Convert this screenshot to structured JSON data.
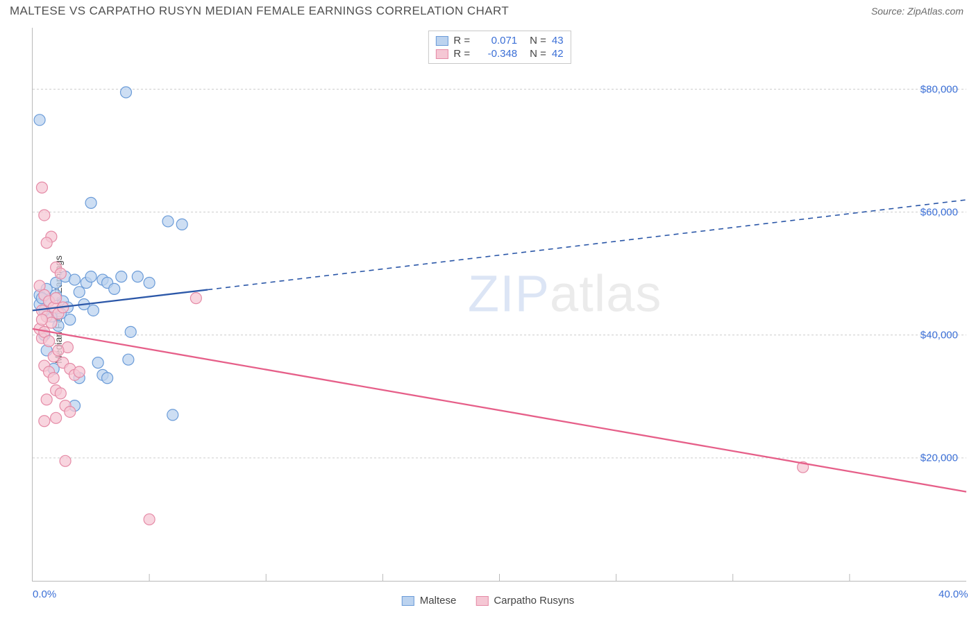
{
  "title": "MALTESE VS CARPATHO RUSYN MEDIAN FEMALE EARNINGS CORRELATION CHART",
  "source": "Source: ZipAtlas.com",
  "y_axis_label": "Median Female Earnings",
  "watermark_zip": "ZIP",
  "watermark_atlas": "atlas",
  "chart": {
    "type": "scatter-with-trendlines",
    "x_min": 0.0,
    "x_max": 40.0,
    "x_ticks": [
      0.0,
      40.0
    ],
    "x_tick_labels": [
      "0.0%",
      "40.0%"
    ],
    "x_minor_ticks": [
      5,
      10,
      15,
      20,
      25,
      30,
      35
    ],
    "y_min": 0,
    "y_max": 90000,
    "y_gridlines": [
      20000,
      40000,
      60000,
      80000
    ],
    "y_tick_labels": [
      "$20,000",
      "$40,000",
      "$60,000",
      "$80,000"
    ],
    "background_color": "#ffffff",
    "grid_color": "#cccccc",
    "axis_color": "#b9b9b9",
    "tick_label_color": "#3b6fd6",
    "marker_radius": 8,
    "marker_stroke_width": 1.2,
    "series": [
      {
        "name": "Maltese",
        "fill": "#bcd3ef",
        "stroke": "#6a9bd8",
        "line_color": "#2b57a8",
        "line_width": 2.3,
        "r": 0.071,
        "n": 43,
        "points": [
          [
            0.3,
            75000
          ],
          [
            4.0,
            79500
          ],
          [
            2.5,
            61500
          ],
          [
            5.8,
            58500
          ],
          [
            6.4,
            58000
          ],
          [
            0.3,
            46500
          ],
          [
            0.6,
            47500
          ],
          [
            1.0,
            48500
          ],
          [
            1.3,
            45500
          ],
          [
            1.4,
            49500
          ],
          [
            1.5,
            44500
          ],
          [
            1.8,
            49000
          ],
          [
            2.0,
            47000
          ],
          [
            2.2,
            45000
          ],
          [
            2.3,
            48500
          ],
          [
            2.5,
            49500
          ],
          [
            2.6,
            44000
          ],
          [
            3.0,
            49000
          ],
          [
            3.2,
            48500
          ],
          [
            3.5,
            47500
          ],
          [
            3.8,
            49500
          ],
          [
            4.2,
            40500
          ],
          [
            4.5,
            49500
          ],
          [
            5.0,
            48500
          ],
          [
            1.2,
            43500
          ],
          [
            0.8,
            43000
          ],
          [
            1.1,
            41500
          ],
          [
            1.6,
            42500
          ],
          [
            0.5,
            40000
          ],
          [
            2.8,
            35500
          ],
          [
            4.1,
            36000
          ],
          [
            2.0,
            33000
          ],
          [
            3.0,
            33500
          ],
          [
            3.2,
            33000
          ],
          [
            0.9,
            34500
          ],
          [
            0.6,
            37500
          ],
          [
            1.8,
            28500
          ],
          [
            6.0,
            27000
          ],
          [
            0.3,
            45000
          ],
          [
            0.4,
            46000
          ],
          [
            1.0,
            46500
          ],
          [
            0.7,
            45500
          ],
          [
            0.5,
            44000
          ]
        ],
        "trend": {
          "x1": 0,
          "y1": 44000,
          "x2": 40,
          "y2": 62000,
          "solid_until_x": 7.5
        }
      },
      {
        "name": "Carpatho Rusyns",
        "fill": "#f5c7d4",
        "stroke": "#e58aa6",
        "line_color": "#e65f89",
        "line_width": 2.3,
        "r": -0.348,
        "n": 42,
        "points": [
          [
            0.4,
            64000
          ],
          [
            0.5,
            59500
          ],
          [
            0.8,
            56000
          ],
          [
            0.6,
            55000
          ],
          [
            1.0,
            51000
          ],
          [
            1.2,
            50000
          ],
          [
            0.3,
            48000
          ],
          [
            0.5,
            46500
          ],
          [
            0.7,
            45500
          ],
          [
            0.9,
            44500
          ],
          [
            1.0,
            46000
          ],
          [
            1.1,
            43500
          ],
          [
            0.4,
            44000
          ],
          [
            0.6,
            43000
          ],
          [
            0.8,
            42000
          ],
          [
            1.3,
            44500
          ],
          [
            1.5,
            38000
          ],
          [
            0.4,
            39500
          ],
          [
            0.9,
            36500
          ],
          [
            1.1,
            37500
          ],
          [
            1.3,
            35500
          ],
          [
            1.6,
            34500
          ],
          [
            1.8,
            33500
          ],
          [
            2.0,
            34000
          ],
          [
            0.5,
            35000
          ],
          [
            0.7,
            34000
          ],
          [
            0.9,
            33000
          ],
          [
            1.0,
            31000
          ],
          [
            1.2,
            30500
          ],
          [
            0.6,
            29500
          ],
          [
            1.4,
            28500
          ],
          [
            1.6,
            27500
          ],
          [
            0.5,
            26000
          ],
          [
            1.0,
            26500
          ],
          [
            1.4,
            19500
          ],
          [
            5.0,
            10000
          ],
          [
            33.0,
            18500
          ],
          [
            7.0,
            46000
          ],
          [
            0.3,
            41000
          ],
          [
            0.4,
            42500
          ],
          [
            0.5,
            40500
          ],
          [
            0.7,
            39000
          ]
        ],
        "trend": {
          "x1": 0,
          "y1": 41000,
          "x2": 40,
          "y2": 14500,
          "solid_until_x": 40
        }
      }
    ],
    "legend_top": {
      "r_label": "R  =",
      "n_label": "N  ="
    },
    "legend_bottom": [
      {
        "label": "Maltese",
        "fill": "#bcd3ef",
        "stroke": "#6a9bd8"
      },
      {
        "label": "Carpatho Rusyns",
        "fill": "#f5c7d4",
        "stroke": "#e58aa6"
      }
    ]
  }
}
